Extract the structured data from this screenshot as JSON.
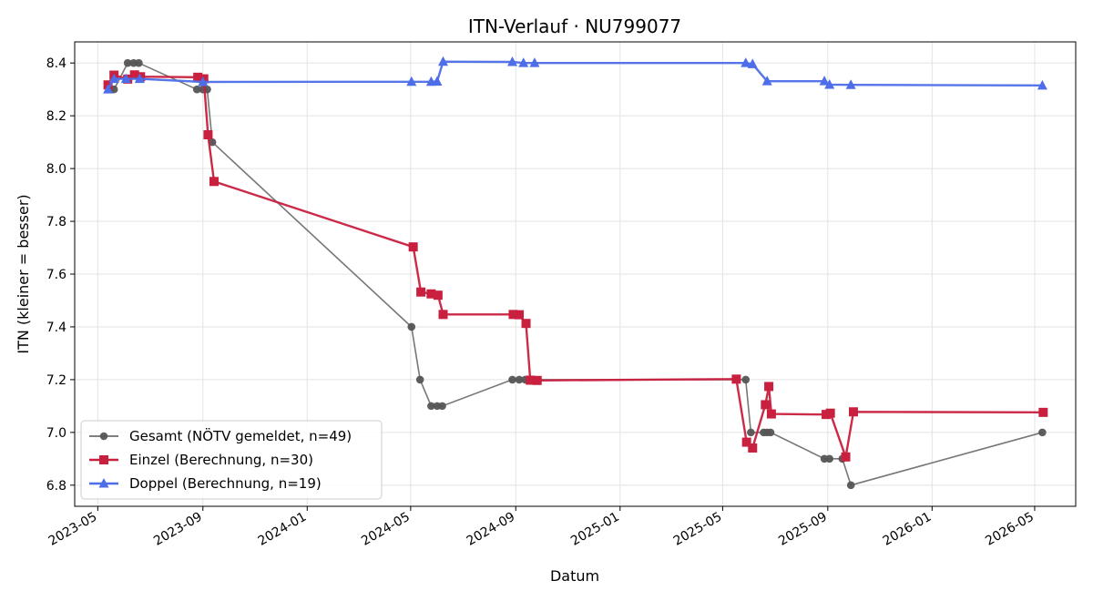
{
  "chart_data": {
    "type": "line",
    "title": "ITN-Verlauf · NU799077",
    "xlabel": "Datum",
    "ylabel": "ITN  (kleiner = besser)",
    "xlim": [
      "2023-04-04",
      "2026-06-18"
    ],
    "ylim": [
      6.72,
      8.48
    ],
    "y_ticks": [
      "6.8",
      "7.0",
      "7.2",
      "7.4",
      "7.6",
      "7.8",
      "8.0",
      "8.2",
      "8.4"
    ],
    "x_ticks": [
      {
        "date": "2023-05-01",
        "label": "2023-05"
      },
      {
        "date": "2023-09-01",
        "label": "2023-09"
      },
      {
        "date": "2024-01-01",
        "label": "2024-01"
      },
      {
        "date": "2024-05-01",
        "label": "2024-05"
      },
      {
        "date": "2024-09-01",
        "label": "2024-09"
      },
      {
        "date": "2025-01-01",
        "label": "2025-01"
      },
      {
        "date": "2025-05-01",
        "label": "2025-05"
      },
      {
        "date": "2025-09-01",
        "label": "2025-09"
      },
      {
        "date": "2026-01-01",
        "label": "2026-01"
      },
      {
        "date": "2026-05-01",
        "label": "2026-05"
      }
    ],
    "grid": true,
    "legend_position": "lower-left",
    "series": [
      {
        "name": "Gesamt (NÖTV gemeldet, n=49)",
        "color": "#555555",
        "marker": "circle",
        "points": [
          [
            "2023-05-15",
            8.3
          ],
          [
            "2023-05-20",
            8.3
          ],
          [
            "2023-06-05",
            8.4
          ],
          [
            "2023-06-12",
            8.4
          ],
          [
            "2023-06-18",
            8.4
          ],
          [
            "2023-08-25",
            8.3
          ],
          [
            "2023-09-01",
            8.3
          ],
          [
            "2023-09-06",
            8.3
          ],
          [
            "2023-09-12",
            8.1
          ],
          [
            "2024-05-02",
            7.4
          ],
          [
            "2024-05-12",
            7.2
          ],
          [
            "2024-05-25",
            7.1
          ],
          [
            "2024-06-01",
            7.1
          ],
          [
            "2024-06-07",
            7.1
          ],
          [
            "2024-08-28",
            7.2
          ],
          [
            "2024-09-05",
            7.2
          ],
          [
            "2024-09-12",
            7.2
          ],
          [
            "2025-05-28",
            7.2
          ],
          [
            "2025-06-03",
            7.0
          ],
          [
            "2025-06-18",
            7.0
          ],
          [
            "2025-06-22",
            7.0
          ],
          [
            "2025-06-26",
            7.0
          ],
          [
            "2025-08-28",
            6.9
          ],
          [
            "2025-09-03",
            6.9
          ],
          [
            "2025-09-18",
            6.9
          ],
          [
            "2025-09-28",
            6.8
          ],
          [
            "2026-05-10",
            7.0
          ]
        ]
      },
      {
        "name": "Einzel (Berechnung, n=30)",
        "color": "#c8203e",
        "marker": "square",
        "points": [
          [
            "2023-05-13",
            8.317
          ],
          [
            "2023-05-20",
            8.354
          ],
          [
            "2023-06-05",
            8.339
          ],
          [
            "2023-06-13",
            8.355
          ],
          [
            "2023-06-20",
            8.348
          ],
          [
            "2023-08-26",
            8.346
          ],
          [
            "2023-09-02",
            8.34
          ],
          [
            "2023-09-07",
            8.128
          ],
          [
            "2023-09-14",
            7.951
          ],
          [
            "2024-05-04",
            7.703
          ],
          [
            "2024-05-13",
            7.532
          ],
          [
            "2024-05-25",
            7.525
          ],
          [
            "2024-06-02",
            7.52
          ],
          [
            "2024-06-08",
            7.447
          ],
          [
            "2024-08-29",
            7.447
          ],
          [
            "2024-09-05",
            7.446
          ],
          [
            "2024-09-13",
            7.413
          ],
          [
            "2024-09-18",
            7.198
          ],
          [
            "2024-09-26",
            7.197
          ],
          [
            "2025-05-17",
            7.202
          ],
          [
            "2025-05-29",
            6.963
          ],
          [
            "2025-06-05",
            6.941
          ],
          [
            "2025-06-20",
            7.105
          ],
          [
            "2025-06-24",
            7.174
          ],
          [
            "2025-06-27",
            7.07
          ],
          [
            "2025-08-30",
            7.068
          ],
          [
            "2025-09-04",
            7.073
          ],
          [
            "2025-09-22",
            6.907
          ],
          [
            "2025-10-01",
            7.078
          ],
          [
            "2026-05-11",
            7.076
          ]
        ]
      },
      {
        "name": "Doppel (Berechnung, n=19)",
        "color": "#4d6ee8",
        "marker": "triangle",
        "points": [
          [
            "2023-05-13",
            8.3
          ],
          [
            "2023-05-20",
            8.34
          ],
          [
            "2023-06-03",
            8.34
          ],
          [
            "2023-06-19",
            8.34
          ],
          [
            "2023-09-01",
            8.328
          ],
          [
            "2024-05-02",
            8.329
          ],
          [
            "2024-05-25",
            8.329
          ],
          [
            "2024-06-01",
            8.33
          ],
          [
            "2024-06-08",
            8.405
          ],
          [
            "2024-08-28",
            8.404
          ],
          [
            "2024-09-10",
            8.4
          ],
          [
            "2024-09-23",
            8.4
          ],
          [
            "2025-05-28",
            8.4
          ],
          [
            "2025-06-05",
            8.396
          ],
          [
            "2025-06-22",
            8.331
          ],
          [
            "2025-08-28",
            8.331
          ],
          [
            "2025-09-03",
            8.318
          ],
          [
            "2025-09-28",
            8.317
          ],
          [
            "2026-05-10",
            8.315
          ]
        ]
      }
    ]
  }
}
